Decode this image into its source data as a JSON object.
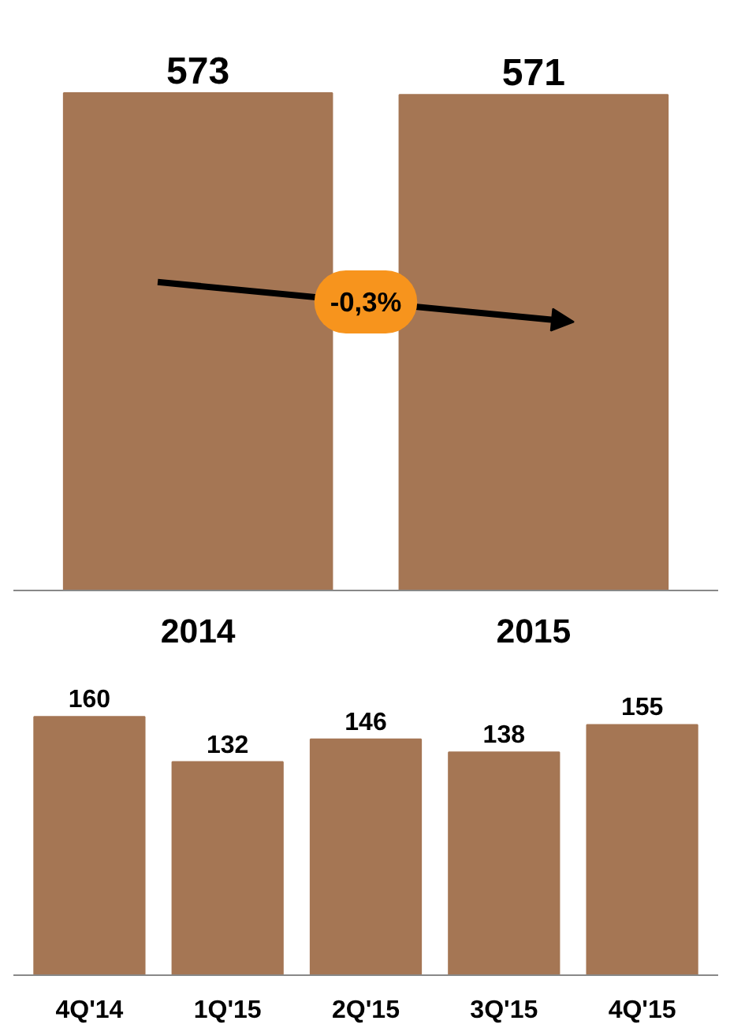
{
  "chart_data": [
    {
      "type": "bar",
      "categories": [
        "2014",
        "2015"
      ],
      "values": [
        573,
        571
      ],
      "color": "#a57654",
      "data_labels": true,
      "annotations": [
        "-0,3%"
      ]
    },
    {
      "type": "bar",
      "categories": [
        "4Q'14",
        "1Q'15",
        "2Q'15",
        "3Q'15",
        "4Q'15"
      ],
      "values": [
        160,
        132,
        146,
        138,
        155
      ],
      "color": "#a57654",
      "data_labels": true
    }
  ]
}
